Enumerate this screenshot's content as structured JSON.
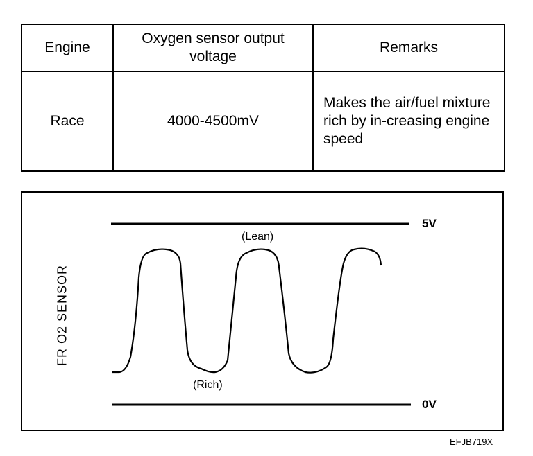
{
  "table": {
    "headers": [
      "Engine",
      "Oxygen sensor output voltage",
      "Remarks"
    ],
    "rows": [
      {
        "engine": "Race",
        "voltage": "4000-4500mV",
        "remarks": "Makes the air/fuel mixture rich by in-creasing engine speed"
      }
    ]
  },
  "diagram": {
    "axis_label": "FR O2 SENSOR",
    "top_line_label": "5V",
    "bottom_line_label": "0V",
    "peak_label": "(Lean)",
    "trough_label": "(Rich)"
  },
  "figure_code": "EFJB719X"
}
